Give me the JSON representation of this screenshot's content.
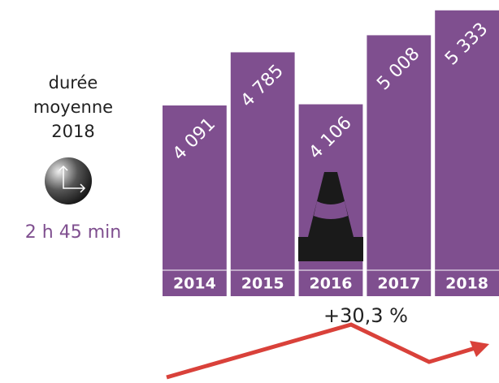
{
  "chart_data": {
    "type": "bar",
    "categories": [
      "2014",
      "2015",
      "2016",
      "2017",
      "2018"
    ],
    "values": [
      4091,
      4785,
      4106,
      5008,
      5333
    ],
    "value_labels": [
      "4 091",
      "4 785",
      "4 106",
      "5 008",
      "5 333"
    ],
    "color": "#7f4f8f",
    "ylim": [
      1600,
      5500
    ],
    "side_label": [
      "durée",
      "moyenne",
      "2018"
    ],
    "side_value": "2 h 45 min",
    "change_label": "+30,3 %"
  }
}
